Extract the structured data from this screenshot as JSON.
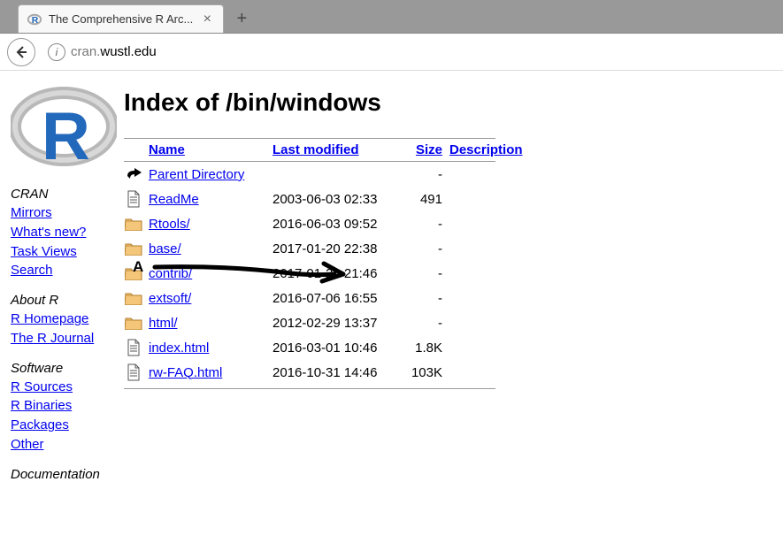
{
  "browser": {
    "tab_title": "The Comprehensive R Arc...",
    "url_prefix": "cran.",
    "url_domain": "wustl.edu"
  },
  "sidebar": {
    "groups": [
      {
        "title": "CRAN",
        "links": [
          "Mirrors",
          "What's new?",
          "Task Views",
          "Search"
        ]
      },
      {
        "title": "About R",
        "links": [
          "R Homepage",
          "The R Journal"
        ]
      },
      {
        "title": "Software",
        "links": [
          "R Sources",
          "R Binaries",
          "Packages",
          "Other"
        ]
      },
      {
        "title": "Documentation",
        "links": []
      }
    ]
  },
  "main": {
    "heading": "Index of /bin/windows",
    "columns": {
      "name": "Name",
      "modified": "Last modified",
      "size": "Size",
      "desc": "Description"
    },
    "rows": [
      {
        "icon": "parent",
        "name": "Parent Directory",
        "modified": "",
        "size": "-"
      },
      {
        "icon": "file",
        "name": "ReadMe",
        "modified": "2003-06-03 02:33",
        "size": "491"
      },
      {
        "icon": "folder",
        "name": "Rtools/",
        "modified": "2016-06-03 09:52",
        "size": "-"
      },
      {
        "icon": "folder",
        "name": "base/",
        "modified": "2017-01-20 22:38",
        "size": "-"
      },
      {
        "icon": "folder",
        "name": "contrib/",
        "modified": "2017-01-20 21:46",
        "size": "-"
      },
      {
        "icon": "folder",
        "name": "extsoft/",
        "modified": "2016-07-06 16:55",
        "size": "-"
      },
      {
        "icon": "folder",
        "name": "html/",
        "modified": "2012-02-29 13:37",
        "size": "-"
      },
      {
        "icon": "file",
        "name": "index.html",
        "modified": "2016-03-01 10:46",
        "size": "1.8K"
      },
      {
        "icon": "file",
        "name": "rw-FAQ.html",
        "modified": "2016-10-31 14:46",
        "size": "103K"
      }
    ]
  },
  "annotation": {
    "label": "A",
    "target_row": 3
  },
  "colors": {
    "link": "#0000ee",
    "r_blue": "#2268bb",
    "r_grey": "#a9a9a9",
    "folder_fill": "#f4c67a",
    "folder_stroke": "#b07c2a",
    "arrow": "#000000"
  }
}
